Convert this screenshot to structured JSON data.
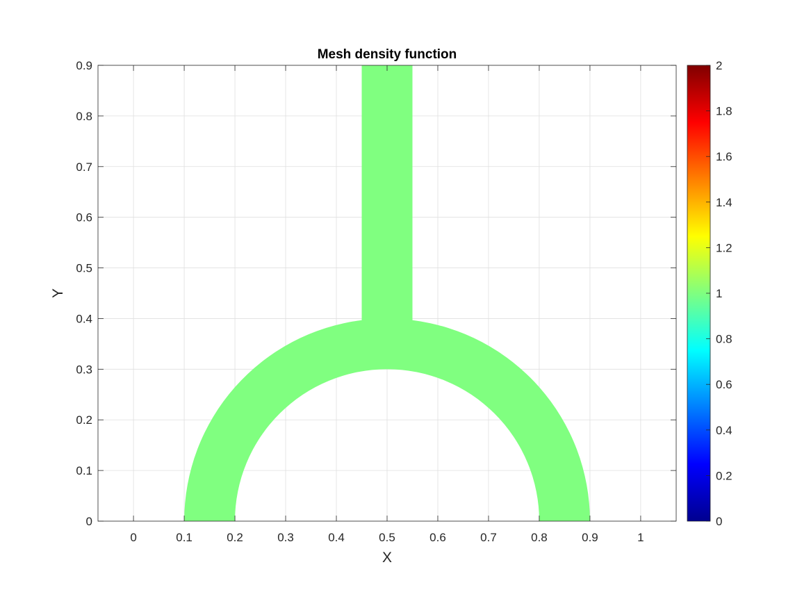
{
  "chart_data": {
    "type": "heatmap",
    "title": "Mesh density function",
    "xlabel": "X",
    "ylabel": "Y",
    "xlim": [
      -0.07,
      1.07
    ],
    "ylim": [
      0,
      0.9
    ],
    "xticks": [
      0,
      0.1,
      0.2,
      0.3,
      0.4,
      0.5,
      0.6,
      0.7,
      0.8,
      0.9,
      1
    ],
    "xtick_labels": [
      "0",
      "0.1",
      "0.2",
      "0.3",
      "0.4",
      "0.5",
      "0.6",
      "0.7",
      "0.8",
      "0.9",
      "1"
    ],
    "yticks": [
      0,
      0.1,
      0.2,
      0.3,
      0.4,
      0.5,
      0.6,
      0.7,
      0.8,
      0.9
    ],
    "ytick_labels": [
      "0",
      "0.1",
      "0.2",
      "0.3",
      "0.4",
      "0.5",
      "0.6",
      "0.7",
      "0.8",
      "0.9"
    ],
    "grid": true,
    "colormap": "jet",
    "clim": [
      0,
      2
    ],
    "colorbar_ticks": [
      0,
      0.2,
      0.4,
      0.6,
      0.8,
      1,
      1.2,
      1.4,
      1.6,
      1.8,
      2
    ],
    "colorbar_tick_labels": [
      "0",
      "0.2",
      "0.4",
      "0.6",
      "0.8",
      "1",
      "1.2",
      "1.4",
      "1.6",
      "1.8",
      "2"
    ],
    "colorbar_position": "right",
    "value": 1,
    "fill_color": "#80ff80",
    "domain": {
      "arch_center": [
        0.5,
        0
      ],
      "arch_inner_radius": 0.3,
      "arch_outer_radius": 0.4,
      "stem_x": [
        0.45,
        0.55
      ],
      "stem_y_top": 0.9
    }
  }
}
